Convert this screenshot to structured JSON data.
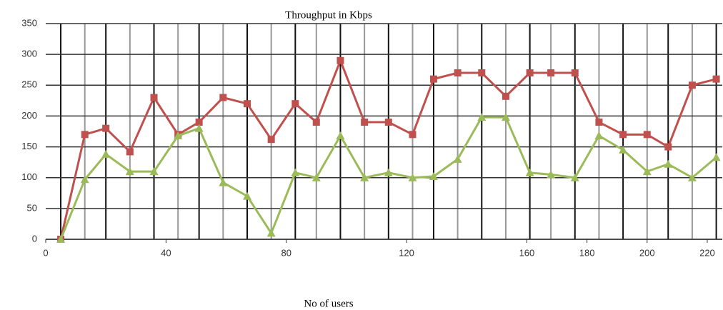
{
  "chart_data": {
    "type": "line",
    "title": "Throughput in Kbps",
    "x_label": "No of users",
    "x": [
      5,
      13,
      20,
      28,
      36,
      44,
      51,
      59,
      67,
      75,
      83,
      90,
      98,
      106,
      114,
      122,
      129,
      137,
      145,
      153,
      161,
      168,
      176,
      184,
      192,
      200,
      207,
      215,
      223
    ],
    "series": [
      {
        "color": "#c0504d",
        "values": [
          0,
          170,
          180,
          142,
          230,
          170,
          190,
          230,
          220,
          162,
          220,
          190,
          290,
          190,
          190,
          170,
          260,
          270,
          270,
          232,
          270,
          270,
          270,
          190,
          170,
          170,
          150,
          250,
          260
        ]
      },
      {
        "color": "#9bbb59",
        "values": [
          0,
          97,
          138,
          110,
          110,
          168,
          180,
          92,
          70,
          10,
          108,
          100,
          168,
          100,
          108,
          100,
          102,
          130,
          198,
          198,
          108,
          105,
          100,
          168,
          145,
          110,
          122,
          100,
          133
        ]
      }
    ],
    "xlim": [
      0,
      225
    ],
    "ylim": [
      0,
      350
    ],
    "xticks": [
      0,
      40,
      80,
      120,
      160,
      180,
      200,
      220
    ],
    "yticks": [
      0,
      50,
      100,
      150,
      200,
      250,
      300,
      350
    ],
    "grid": true
  }
}
